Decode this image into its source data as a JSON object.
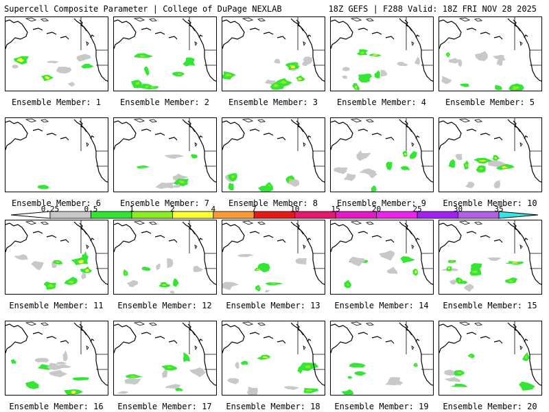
{
  "header": {
    "left_title": "Supercell Composite Parameter | College of DuPage NEXLAB",
    "right_title": "18Z GEFS | F288 Valid: 18Z FRI NOV 28 2025"
  },
  "colorbar": {
    "labels": [
      "0.25",
      "0.5",
      "1",
      "2",
      "4",
      "7",
      "10",
      "15",
      "20",
      "25",
      "30",
      "35"
    ],
    "colors": [
      "#c8c8c8",
      "#33e633",
      "#88ee22",
      "#ffff33",
      "#ff9933",
      "#e61919",
      "#e6196e",
      "#e619c8",
      "#ee22ee",
      "#a020f0",
      "#b060e0",
      "#33e6e6"
    ]
  },
  "members": [
    {
      "caption": "Ensemble Member: 1"
    },
    {
      "caption": "Ensemble Member: 2"
    },
    {
      "caption": "Ensemble Member: 3"
    },
    {
      "caption": "Ensemble Member: 4"
    },
    {
      "caption": "Ensemble Member: 5"
    },
    {
      "caption": "Ensemble Member: 6"
    },
    {
      "caption": "Ensemble Member: 7"
    },
    {
      "caption": "Ensemble Member: 8"
    },
    {
      "caption": "Ensemble Member: 9"
    },
    {
      "caption": "Ensemble Member: 10"
    },
    {
      "caption": "Ensemble Member: 11"
    },
    {
      "caption": "Ensemble Member: 12"
    },
    {
      "caption": "Ensemble Member: 13"
    },
    {
      "caption": "Ensemble Member: 14"
    },
    {
      "caption": "Ensemble Member: 15"
    },
    {
      "caption": "Ensemble Member: 16"
    },
    {
      "caption": "Ensemble Member: 17"
    },
    {
      "caption": "Ensemble Member: 18"
    },
    {
      "caption": "Ensemble Member: 19"
    },
    {
      "caption": "Ensemble Member: 20"
    }
  ]
}
